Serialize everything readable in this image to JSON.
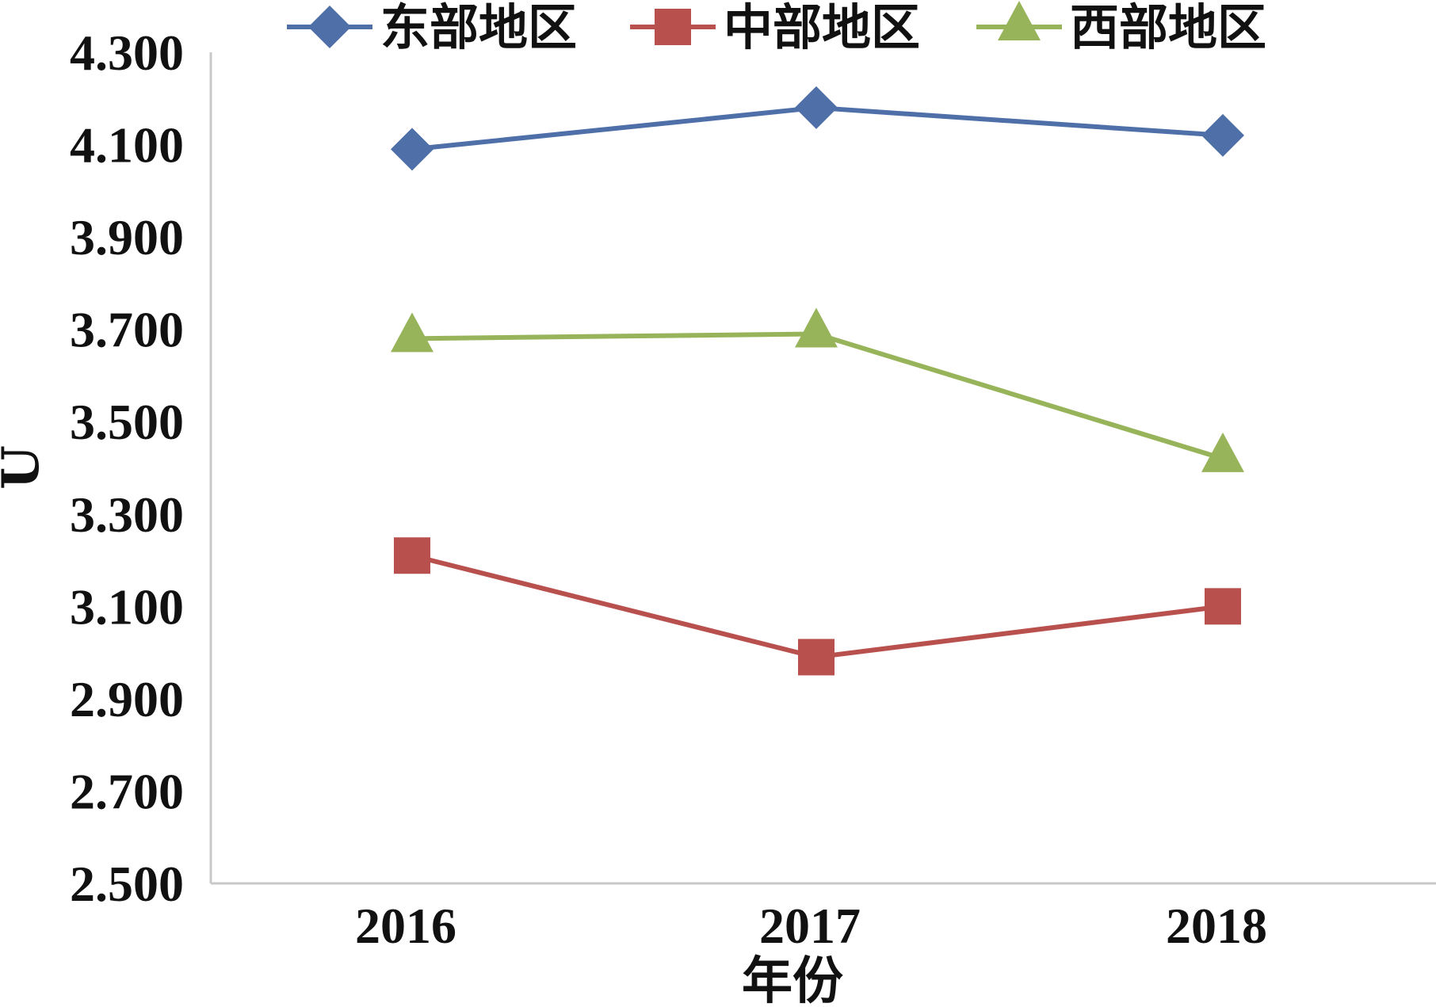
{
  "chart_data": {
    "type": "line",
    "categories": [
      "2016",
      "2017",
      "2018"
    ],
    "x": [
      "2016",
      "2017",
      "2018"
    ],
    "xlabel": "年份",
    "ylabel": "U",
    "ylim": [
      2.5,
      4.3
    ],
    "yticks": [
      "2.500",
      "2.700",
      "2.900",
      "3.100",
      "3.300",
      "3.500",
      "3.700",
      "3.900",
      "4.100",
      "4.300"
    ],
    "grid": false,
    "legend": "top",
    "series": [
      {
        "name": "东部地区",
        "values": [
          4.09,
          4.18,
          4.12
        ],
        "color": "#4F6FA8",
        "marker": "diamond"
      },
      {
        "name": "中部地区",
        "values": [
          3.21,
          2.99,
          3.1
        ],
        "color": "#B8504D",
        "marker": "square"
      },
      {
        "name": "西部地区",
        "values": [
          3.68,
          3.69,
          3.42
        ],
        "color": "#98B45A",
        "marker": "triangle"
      }
    ]
  }
}
